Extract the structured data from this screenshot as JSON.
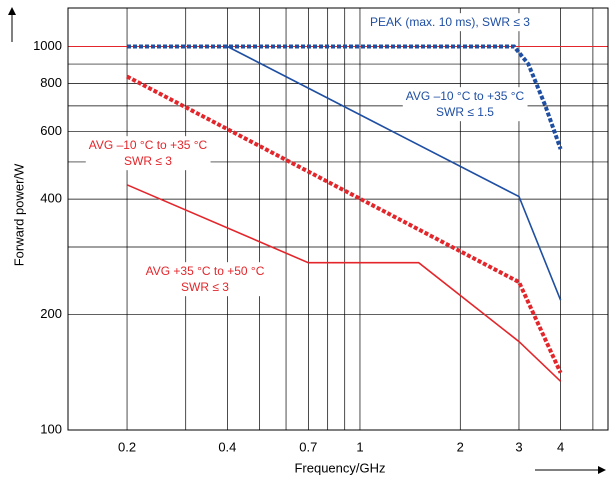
{
  "chart_data": {
    "type": "line",
    "log_x": true,
    "log_y": true,
    "x_label": "Frequency/GHz",
    "y_label": "Forward power/W",
    "xlim": [
      0.133,
      5.55
    ],
    "ylim": [
      100,
      1260
    ],
    "xticks": [
      0.2,
      0.4,
      0.7,
      1,
      2,
      3,
      4
    ],
    "yticks": [
      100,
      200,
      400,
      600,
      800,
      1000
    ],
    "x_minor_grid": [
      0.3,
      0.5,
      0.6,
      0.8,
      0.9,
      5
    ],
    "y_minor_grid": [
      300,
      500,
      700,
      900
    ],
    "reference_line": {
      "value": 1000,
      "color": "#e3262b"
    },
    "grid": true,
    "series": [
      {
        "label": [
          "PEAK (max. 10 ms), SWR ≤ 3"
        ],
        "color": "#1f4fa3",
        "dashed": true,
        "x": [
          0.2,
          2.9,
          3.2,
          3.6,
          4
        ],
        "values": [
          1000,
          1000,
          900,
          700,
          540
        ]
      },
      {
        "label": [
          "AVG –10 °C to +35 °C",
          "SWR ≤ 1.5"
        ],
        "color": "#1f4fa3",
        "dashed": false,
        "x": [
          0.4,
          3,
          4
        ],
        "values": [
          1000,
          406,
          218
        ]
      },
      {
        "label": [
          "AVG –10 °C to +35 °C",
          "SWR ≤ 3"
        ],
        "color": "#e3262b",
        "dashed": true,
        "x": [
          0.2,
          3,
          4
        ],
        "values": [
          835,
          243,
          141
        ]
      },
      {
        "label": [
          "AVG +35 °C to +50 °C",
          "SWR ≤ 3"
        ],
        "color": "#e3262b",
        "dashed": false,
        "x": [
          0.2,
          0.7,
          1.5,
          3,
          4
        ],
        "values": [
          436,
          273,
          273,
          170,
          134
        ]
      }
    ]
  }
}
